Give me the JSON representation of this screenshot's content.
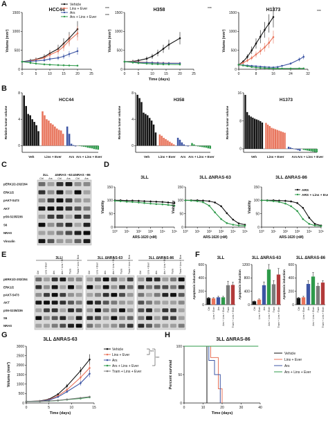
{
  "panel_letters": [
    "A",
    "B",
    "C",
    "D",
    "E",
    "F",
    "G",
    "H"
  ],
  "colors": {
    "vehicle": "#111111",
    "lins_ever": "#e8735a",
    "ars": "#3d55a4",
    "combo": "#2e9a4a",
    "tram": "#7a7a7a",
    "tram_combo": "#b23a3a",
    "other": "#444444"
  },
  "legend_A": [
    "Vehicle",
    "Lins + Ever",
    "Ars",
    "Ars + Lins + Ever"
  ],
  "legend_D": [
    "ARS",
    "ARS + Lins + Ever"
  ],
  "legend_G": [
    "Vehicle",
    "Lins + Ever",
    "Ars",
    "Ars + Lins + Ever",
    "Tram + Lins + Ever"
  ],
  "legend_H": [
    "Vehicle",
    "Lins + Ever",
    "Ars",
    "Ars + Lins + Ever"
  ],
  "stars": "***",
  "A_ylabel": "Volume (mm³)",
  "A_xlabel": "Time (days)",
  "B_ylabel": "Relative tumor volume",
  "B_groups": [
    "Veh",
    "Lins + Ever",
    "Ars",
    "Ars + Lins + Ever"
  ],
  "C_cols": [
    "3LL",
    "ΔNRAS –63",
    "ΔNRAS –86"
  ],
  "C_rows": [
    "pERK1/2-202/204",
    "ERK1/2",
    "pAKT-S473",
    "AKT",
    "pS6-S235/236",
    "S6",
    "NRAS",
    "Vinculin"
  ],
  "D_ylabel": "Viability",
  "D_xlabel": "ARS-1620 (nM)",
  "E_titles": [
    "3LL",
    "3LL ΔNRAS-63",
    "3LL ΔNRAS-86"
  ],
  "E_lanes": [
    "Ctrl",
    "Lins + Ever",
    "Ars",
    "Ars + Lins + Ever",
    "Tram",
    "Tram + Lins + Ever"
  ],
  "E_rows": [
    "pERK1/2-202/204",
    "ERK1/2",
    "pAKT-S473",
    "AKT",
    "pS6-S235/236",
    "S6",
    "NRAS"
  ],
  "F_ylabel": "Apoptosis induction",
  "F_cats": [
    "Ctrl",
    "Lins + Ever",
    "Ars",
    "Ars + Lins + Ever",
    "Tram",
    "Tram + Lins + Ever"
  ],
  "G_title": "3LL ΔNRAS-63",
  "G_ylabel": "Volume (mm³)",
  "G_xlabel": "Time (days)",
  "H_title": "3LL ΔNRAS-86",
  "H_ylabel": "Percent survival",
  "H_xlabel": "Time (days)",
  "chart_data": [
    {
      "id": "A1",
      "type": "line",
      "title": "HCC44",
      "x": [
        0,
        3,
        5,
        8,
        10,
        13,
        15,
        17,
        20
      ],
      "xlim": [
        0,
        25
      ],
      "ylim": [
        0,
        1500
      ],
      "xticks": [
        0,
        5,
        10,
        15,
        20,
        25
      ],
      "yticks": [
        0,
        500,
        1000,
        1500
      ],
      "series": [
        {
          "key": "vehicle",
          "values": [
            200,
            230,
            260,
            330,
            420,
            540,
            680,
            820,
            1060
          ]
        },
        {
          "key": "lins_ever",
          "values": [
            200,
            220,
            250,
            300,
            380,
            480,
            600,
            760,
            950
          ]
        },
        {
          "key": "ars",
          "values": [
            200,
            210,
            220,
            240,
            270,
            300,
            340,
            400,
            480
          ]
        },
        {
          "key": "combo",
          "values": [
            200,
            170,
            150,
            130,
            120,
            110,
            105,
            100,
            95
          ]
        }
      ]
    },
    {
      "id": "A2",
      "type": "line",
      "title": "H358",
      "x": [
        0,
        3,
        5,
        8,
        10,
        12,
        14,
        16,
        20
      ],
      "xlim": [
        0,
        25
      ],
      "ylim": [
        0,
        1500
      ],
      "xticks": [
        0,
        5,
        10,
        15,
        20,
        25
      ],
      "yticks": [
        0,
        500,
        1000,
        1500
      ],
      "series": [
        {
          "key": "vehicle",
          "values": [
            200,
            210,
            230,
            280,
            340,
            430,
            540,
            650,
            820
          ]
        },
        {
          "key": "lins_ever",
          "values": [
            200,
            200,
            190,
            180,
            175,
            170,
            165,
            160,
            160
          ]
        },
        {
          "key": "ars",
          "values": [
            200,
            190,
            180,
            175,
            170,
            165,
            160,
            158,
            155
          ]
        },
        {
          "key": "combo",
          "values": [
            200,
            180,
            165,
            150,
            140,
            135,
            130,
            128,
            125
          ]
        }
      ]
    },
    {
      "id": "A3",
      "type": "line",
      "title": "H1373",
      "x": [
        0,
        2,
        4,
        6,
        8,
        10,
        12,
        14,
        16,
        18,
        20,
        24,
        28,
        30
      ],
      "xlim": [
        0,
        32
      ],
      "ylim": [
        0,
        1500
      ],
      "xticks": [
        0,
        8,
        16,
        24,
        32
      ],
      "yticks": [
        0,
        500,
        1000,
        1500
      ],
      "series": [
        {
          "key": "vehicle",
          "values": [
            120,
            200,
            330,
            500,
            680,
            860,
            1040,
            1210,
            1380,
            null,
            null,
            null,
            null,
            null
          ]
        },
        {
          "key": "lins_ever",
          "values": [
            120,
            170,
            230,
            300,
            390,
            480,
            580,
            700,
            850,
            null,
            null,
            null,
            null,
            null
          ]
        },
        {
          "key": "ars",
          "values": [
            120,
            110,
            100,
            90,
            80,
            70,
            60,
            55,
            50,
            60,
            90,
            150,
            260,
            330
          ]
        },
        {
          "key": "combo",
          "values": [
            120,
            100,
            80,
            60,
            45,
            35,
            30,
            25,
            20,
            20,
            20,
            20,
            22,
            22
          ]
        }
      ]
    },
    {
      "id": "B1",
      "type": "bar",
      "title": "HCC44",
      "ylim": [
        -1,
        8
      ],
      "yticks": [
        0,
        4,
        8
      ],
      "groups": [
        {
          "key": "vehicle",
          "values": [
            7.6,
            6.0,
            4.8,
            4.6,
            4.0,
            3.6,
            3.1,
            2.2
          ]
        },
        {
          "key": "lins_ever",
          "values": [
            5.2,
            4.6,
            4.0,
            3.8,
            3.4,
            3.2,
            2.9,
            2.6,
            2.4,
            2.3,
            1.8
          ]
        },
        {
          "key": "ars",
          "values": [
            2.9,
            1.8,
            0.3,
            0.1,
            -0.1
          ]
        },
        {
          "key": "combo",
          "values": [
            -0.05,
            -0.1,
            -0.15,
            -0.2,
            -0.3,
            -0.35,
            -0.4,
            -0.5,
            -0.55,
            -0.6
          ]
        }
      ]
    },
    {
      "id": "B2",
      "type": "bar",
      "title": "H358",
      "ylim": [
        -1,
        8
      ],
      "yticks": [
        0,
        4,
        8
      ],
      "groups": [
        {
          "key": "vehicle",
          "values": [
            7.7,
            7.2,
            6.6,
            5.0,
            4.8,
            4.6,
            4.2,
            3.8,
            3.2,
            2.0
          ]
        },
        {
          "key": "lins_ever",
          "values": [
            1.7,
            1.5,
            1.2,
            1.0,
            0.8,
            0.6,
            0.4,
            0.2
          ]
        },
        {
          "key": "ars",
          "values": [
            1.2,
            0.9,
            0.5,
            0.2,
            0.05,
            -0.1
          ]
        },
        {
          "key": "combo",
          "values": [
            0.4,
            0.2,
            0,
            -0.1,
            -0.15,
            -0.2,
            -0.25,
            -0.3,
            -0.4,
            -0.45
          ]
        }
      ]
    },
    {
      "id": "B3",
      "type": "bar",
      "title": "H1373",
      "ylim": [
        -1,
        16
      ],
      "yticks": [
        0,
        8,
        16
      ],
      "groups": [
        {
          "key": "vehicle",
          "values": [
            15.4,
            10.5,
            9.6,
            9.2,
            8.9,
            8.6,
            8.4,
            8.2,
            7.9,
            7.5
          ]
        },
        {
          "key": "lins_ever",
          "values": [
            7.4,
            6.9,
            6.5,
            6.0,
            5.8,
            5.6,
            5.4,
            5.2,
            5.0,
            4.8,
            4.6
          ]
        },
        {
          "key": "ars",
          "values": [
            0.6,
            0.4,
            0.2,
            0.0,
            -0.2,
            -0.4,
            -0.6
          ]
        },
        {
          "key": "combo",
          "values": [
            -0.3,
            -0.4,
            -0.5,
            -0.6,
            -0.7,
            -0.8,
            -0.9,
            -1.0
          ]
        }
      ]
    },
    {
      "id": "D1",
      "type": "line",
      "title": "3LL",
      "xlog": true,
      "xlim": [
        1,
        100000
      ],
      "ylim": [
        0,
        150
      ],
      "xticks": [
        1,
        10,
        100,
        1000,
        10000,
        100000
      ],
      "yticks": [
        0,
        50,
        100,
        150
      ],
      "x": [
        1,
        3,
        10,
        30,
        100,
        300,
        1000,
        3000,
        10000,
        30000,
        100000
      ],
      "series": [
        {
          "key": "vehicle",
          "values": [
            100,
            100,
            99,
            99,
            98,
            97,
            96,
            95,
            94,
            92,
            90
          ]
        },
        {
          "key": "combo",
          "values": [
            98,
            97,
            95,
            94,
            92,
            90,
            88,
            86,
            85,
            83,
            80
          ]
        }
      ]
    },
    {
      "id": "D2",
      "type": "line",
      "title": "3LL ΔNRAS-63",
      "xlog": true,
      "xlim": [
        1,
        100000
      ],
      "ylim": [
        0,
        150
      ],
      "xticks": [
        1,
        10,
        100,
        1000,
        10000,
        100000
      ],
      "yticks": [
        0,
        50,
        100,
        150
      ],
      "x": [
        1,
        3,
        10,
        30,
        100,
        300,
        1000,
        3000,
        10000,
        30000,
        100000
      ],
      "series": [
        {
          "key": "vehicle",
          "values": [
            100,
            100,
            100,
            99,
            97,
            92,
            78,
            52,
            28,
            14,
            9
          ]
        },
        {
          "key": "combo",
          "values": [
            100,
            99,
            97,
            93,
            80,
            55,
            30,
            15,
            9,
            6,
            5
          ]
        }
      ]
    },
    {
      "id": "D3",
      "type": "line",
      "title": "3LL ΔNRAS-86",
      "xlog": true,
      "xlim": [
        1,
        100000
      ],
      "ylim": [
        0,
        150
      ],
      "xticks": [
        1,
        10,
        100,
        1000,
        10000,
        100000
      ],
      "yticks": [
        0,
        50,
        100,
        150
      ],
      "x": [
        1,
        3,
        10,
        30,
        100,
        300,
        1000,
        3000,
        10000,
        30000,
        100000
      ],
      "series": [
        {
          "key": "vehicle",
          "values": [
            100,
            100,
            100,
            99,
            98,
            96,
            90,
            72,
            35,
            12,
            6
          ]
        },
        {
          "key": "combo",
          "values": [
            100,
            99,
            97,
            94,
            88,
            78,
            60,
            30,
            12,
            6,
            4
          ]
        }
      ]
    },
    {
      "id": "F1",
      "type": "bar",
      "title": "3LL",
      "ylim": [
        0,
        600
      ],
      "yticks": [
        0,
        200,
        400,
        600
      ],
      "values": [
        100,
        95,
        110,
        110,
        290,
        295
      ],
      "errors": [
        10,
        10,
        15,
        15,
        60,
        40
      ],
      "keys": [
        "vehicle",
        "lins_ever",
        "ars",
        "combo",
        "tram",
        "tram_combo"
      ]
    },
    {
      "id": "F2",
      "type": "bar",
      "title": "3LL ΔNRAS-63",
      "ylim": [
        0,
        1200
      ],
      "yticks": [
        0,
        400,
        800,
        1200
      ],
      "values": [
        100,
        150,
        580,
        1050,
        610,
        900
      ],
      "errors": [
        10,
        20,
        100,
        150,
        110,
        180
      ],
      "keys": [
        "vehicle",
        "lins_ever",
        "ars",
        "combo",
        "tram",
        "tram_combo"
      ]
    },
    {
      "id": "F3",
      "type": "bar",
      "title": "3LL ΔNRAS-86",
      "ylim": [
        0,
        600
      ],
      "yticks": [
        0,
        200,
        400,
        600
      ],
      "values": [
        100,
        110,
        310,
        420,
        280,
        330
      ],
      "errors": [
        10,
        15,
        50,
        60,
        40,
        30
      ],
      "keys": [
        "vehicle",
        "lins_ever",
        "ars",
        "combo",
        "tram",
        "tram_combo"
      ]
    },
    {
      "id": "G",
      "type": "line",
      "title": "3LL ΔNRAS-63",
      "x": [
        0,
        3,
        5,
        7,
        9,
        12,
        14
      ],
      "xlim": [
        0,
        15
      ],
      "ylim": [
        0,
        3000
      ],
      "xticks": [
        0,
        5,
        10,
        15
      ],
      "yticks": [
        0,
        500,
        1000,
        1500,
        2000,
        2500,
        3000
      ],
      "series": [
        {
          "key": "vehicle",
          "values": [
            80,
            110,
            200,
            460,
            900,
            1700,
            2300
          ]
        },
        {
          "key": "lins_ever",
          "values": [
            80,
            100,
            170,
            380,
            700,
            1350,
            1850
          ]
        },
        {
          "key": "ars",
          "values": [
            80,
            95,
            150,
            320,
            600,
            1050,
            1550
          ]
        },
        {
          "key": "combo",
          "values": [
            80,
            85,
            100,
            130,
            180,
            240,
            300
          ]
        },
        {
          "key": "tram",
          "values": [
            80,
            85,
            105,
            140,
            190,
            270,
            330
          ]
        }
      ]
    },
    {
      "id": "H",
      "type": "line",
      "title": "3LL ΔNRAS-86",
      "xlim": [
        0,
        40
      ],
      "ylim": [
        0,
        100
      ],
      "xticks": [
        0,
        10,
        20,
        30,
        40
      ],
      "yticks": [
        0,
        50,
        100
      ],
      "series": [
        {
          "key": "vehicle",
          "steps": [
            [
              0,
              100
            ],
            [
              12,
              100
            ],
            [
              12,
              0
            ]
          ]
        },
        {
          "key": "lins_ever",
          "steps": [
            [
              0,
              100
            ],
            [
              14,
              100
            ],
            [
              14,
              80
            ],
            [
              18,
              80
            ],
            [
              18,
              25
            ],
            [
              20,
              25
            ],
            [
              20,
              0
            ]
          ]
        },
        {
          "key": "ars",
          "steps": [
            [
              0,
              100
            ],
            [
              13,
              100
            ],
            [
              13,
              75
            ],
            [
              16,
              75
            ],
            [
              16,
              50
            ],
            [
              19,
              50
            ],
            [
              19,
              0
            ]
          ]
        },
        {
          "key": "combo",
          "steps": [
            [
              0,
              100
            ],
            [
              39,
              100
            ]
          ]
        }
      ]
    }
  ]
}
